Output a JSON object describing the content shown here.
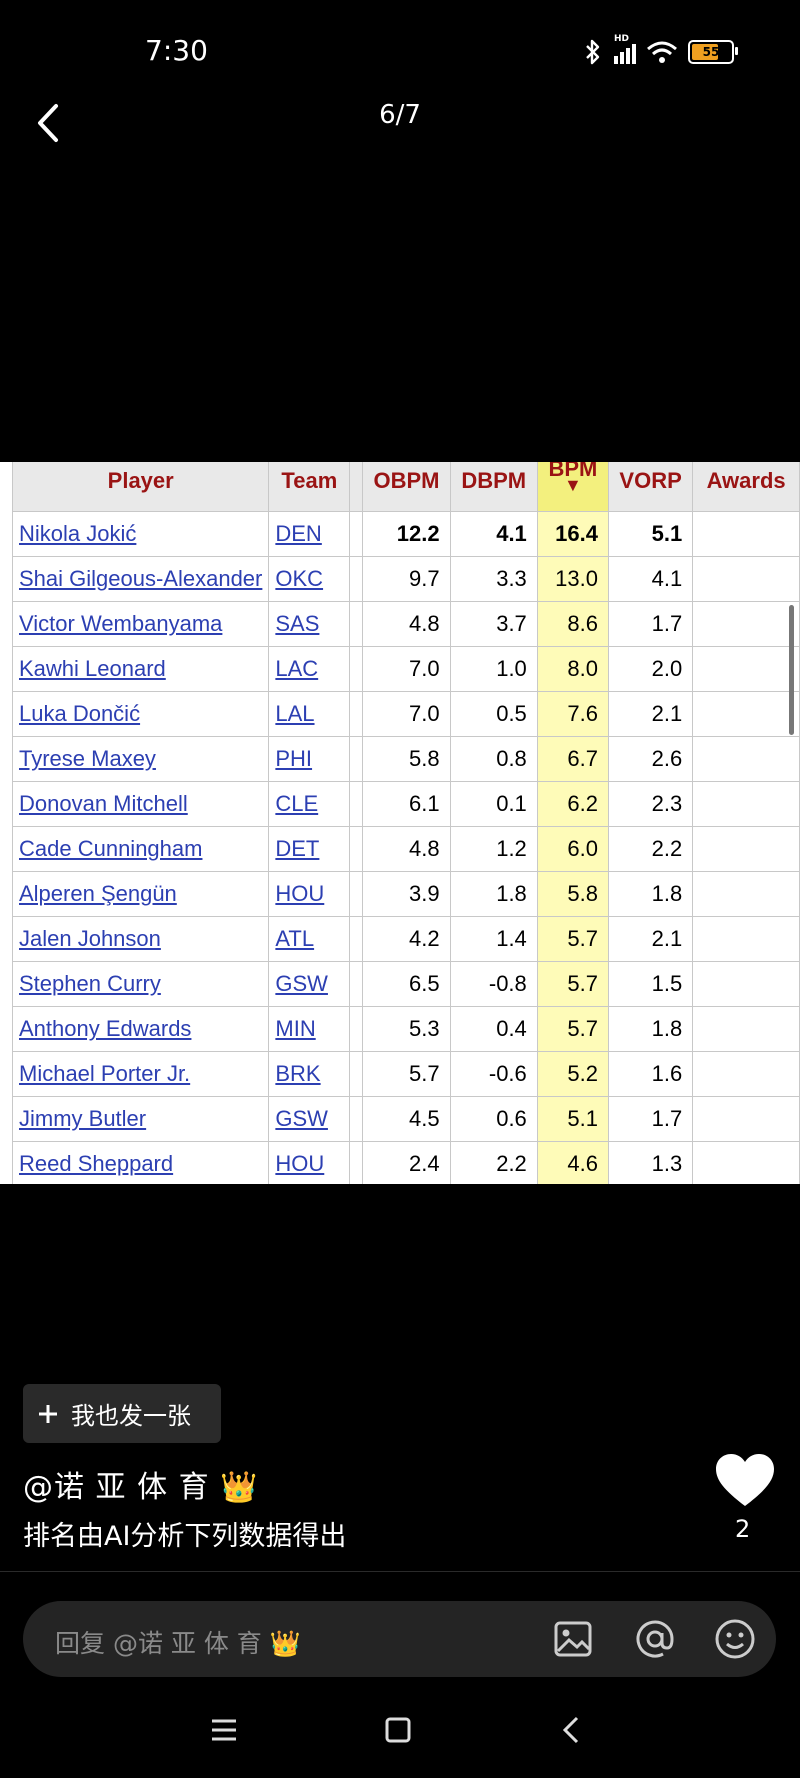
{
  "status_bar": {
    "time": "7:30",
    "battery": "55",
    "network": "HD"
  },
  "header": {
    "page_counter": "6/7"
  },
  "table": {
    "columns": [
      {
        "key": "player",
        "label": "Player"
      },
      {
        "key": "team",
        "label": "Team"
      },
      {
        "key": "obpm",
        "label": "OBPM"
      },
      {
        "key": "dbpm",
        "label": "DBPM"
      },
      {
        "key": "bpm",
        "label": "BPM",
        "sort_indicator": "▼"
      },
      {
        "key": "vorp",
        "label": "VORP"
      },
      {
        "key": "awards",
        "label": "Awards"
      }
    ],
    "rows": [
      {
        "player": "Nikola Jokić",
        "team": "DEN",
        "obpm": "12.2",
        "dbpm": "4.1",
        "bpm": "16.4",
        "vorp": "5.1",
        "awards": ""
      },
      {
        "player": "Shai Gilgeous-Alexander",
        "team": "OKC",
        "obpm": "9.7",
        "dbpm": "3.3",
        "bpm": "13.0",
        "vorp": "4.1",
        "awards": ""
      },
      {
        "player": "Victor Wembanyama",
        "team": "SAS",
        "obpm": "4.8",
        "dbpm": "3.7",
        "bpm": "8.6",
        "vorp": "1.7",
        "awards": ""
      },
      {
        "player": "Kawhi Leonard",
        "team": "LAC",
        "obpm": "7.0",
        "dbpm": "1.0",
        "bpm": "8.0",
        "vorp": "2.0",
        "awards": ""
      },
      {
        "player": "Luka Dončić",
        "team": "LAL",
        "obpm": "7.0",
        "dbpm": "0.5",
        "bpm": "7.6",
        "vorp": "2.1",
        "awards": ""
      },
      {
        "player": "Tyrese Maxey",
        "team": "PHI",
        "obpm": "5.8",
        "dbpm": "0.8",
        "bpm": "6.7",
        "vorp": "2.6",
        "awards": ""
      },
      {
        "player": "Donovan Mitchell",
        "team": "CLE",
        "obpm": "6.1",
        "dbpm": "0.1",
        "bpm": "6.2",
        "vorp": "2.3",
        "awards": ""
      },
      {
        "player": "Cade Cunningham",
        "team": "DET",
        "obpm": "4.8",
        "dbpm": "1.2",
        "bpm": "6.0",
        "vorp": "2.2",
        "awards": ""
      },
      {
        "player": "Alperen Şengün",
        "team": "HOU",
        "obpm": "3.9",
        "dbpm": "1.8",
        "bpm": "5.8",
        "vorp": "1.8",
        "awards": ""
      },
      {
        "player": "Jalen Johnson",
        "team": "ATL",
        "obpm": "4.2",
        "dbpm": "1.4",
        "bpm": "5.7",
        "vorp": "2.1",
        "awards": ""
      },
      {
        "player": "Stephen Curry",
        "team": "GSW",
        "obpm": "6.5",
        "dbpm": "-0.8",
        "bpm": "5.7",
        "vorp": "1.5",
        "awards": ""
      },
      {
        "player": "Anthony Edwards",
        "team": "MIN",
        "obpm": "5.3",
        "dbpm": "0.4",
        "bpm": "5.7",
        "vorp": "1.8",
        "awards": ""
      },
      {
        "player": "Michael Porter Jr.",
        "team": "BRK",
        "obpm": "5.7",
        "dbpm": "-0.6",
        "bpm": "5.2",
        "vorp": "1.6",
        "awards": ""
      },
      {
        "player": "Jimmy Butler",
        "team": "GSW",
        "obpm": "4.5",
        "dbpm": "0.6",
        "bpm": "5.1",
        "vorp": "1.7",
        "awards": ""
      },
      {
        "player": "Reed Sheppard",
        "team": "HOU",
        "obpm": "2.4",
        "dbpm": "2.2",
        "bpm": "4.6",
        "vorp": "1.3",
        "awards": ""
      }
    ]
  },
  "post": {
    "post_button_label": "我也发一张",
    "author": "@诺 亚 体 育 👑",
    "caption": "排名由AI分析下列数据得出",
    "like_count": "2"
  },
  "reply": {
    "placeholder": "回复 @诺 亚 体 育 👑"
  },
  "icons": {
    "back": "chevron-left-icon",
    "like": "heart-icon",
    "image": "image-icon",
    "mention": "at-icon",
    "emoji": "emoji-icon",
    "menu": "menu-icon",
    "home": "home-square-icon",
    "nav_back": "nav-back-icon"
  },
  "colors": {
    "header_text": "#9a1414",
    "link": "#2c3fb2",
    "sorted_column": "#fefbb8"
  }
}
